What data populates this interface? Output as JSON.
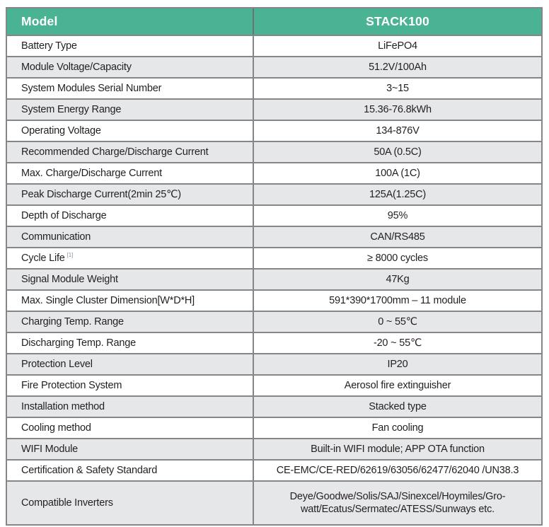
{
  "table": {
    "header": {
      "label": "Model",
      "value": "STACK100"
    },
    "rows": [
      {
        "label": "Battery Type",
        "value": "LiFePO4"
      },
      {
        "label": "Module Voltage/Capacity",
        "value": "51.2V/100Ah"
      },
      {
        "label": "System Modules Serial Number",
        "value": "3~15"
      },
      {
        "label": "System Energy Range",
        "value": "15.36-76.8kWh"
      },
      {
        "label": "Operating Voltage",
        "value": "134-876V"
      },
      {
        "label": "Recommended Charge/Discharge Current",
        "value": "50A (0.5C)"
      },
      {
        "label": "Max. Charge/Discharge Current",
        "value": "100A (1C)"
      },
      {
        "label": "Peak Discharge Current(2min 25℃)",
        "value": "125A(1.25C)"
      },
      {
        "label": "Depth of Discharge",
        "value": "95%"
      },
      {
        "label": "Communication",
        "value": "CAN/RS485"
      },
      {
        "label": "Cycle Life",
        "label_sup": "[1]",
        "value": "≥ 8000 cycles"
      },
      {
        "label": "Signal Module Weight",
        "value": "47Kg"
      },
      {
        "label": "Max. Single Cluster Dimension[W*D*H]",
        "value": "591*390*1700mm – 11 module"
      },
      {
        "label": "Charging Temp. Range",
        "value": "0 ~ 55℃"
      },
      {
        "label": "Discharging Temp. Range",
        "value": "-20 ~ 55℃"
      },
      {
        "label": "Protection Level",
        "value": "IP20"
      },
      {
        "label": "Fire Protection System",
        "value": "Aerosol fire extinguisher"
      },
      {
        "label": "Installation method",
        "value": "Stacked type"
      },
      {
        "label": "Cooling method",
        "value": "Fan cooling"
      },
      {
        "label": "WIFI Module",
        "value": "Built-in WIFI module; APP OTA function"
      },
      {
        "label": "Certification & Safety Standard",
        "value": "CE-EMC/CE-RED/62619/63056/62477/62040 /UN38.3"
      },
      {
        "label": "Compatible Inverters",
        "value": "Deye/Goodwe/Solis/SAJ/Sinexcel/Hoymiles/Gro-\nwatt/Ecatus/Sermatec/ATESS/Sunways etc.",
        "tall": true
      }
    ],
    "colors": {
      "header_bg": "#4ab394",
      "header_text": "#ffffff",
      "stripe_bg": "#e6e7e8",
      "border": "#84868a",
      "text": "#231f20",
      "footnote": "#8196a4"
    }
  }
}
